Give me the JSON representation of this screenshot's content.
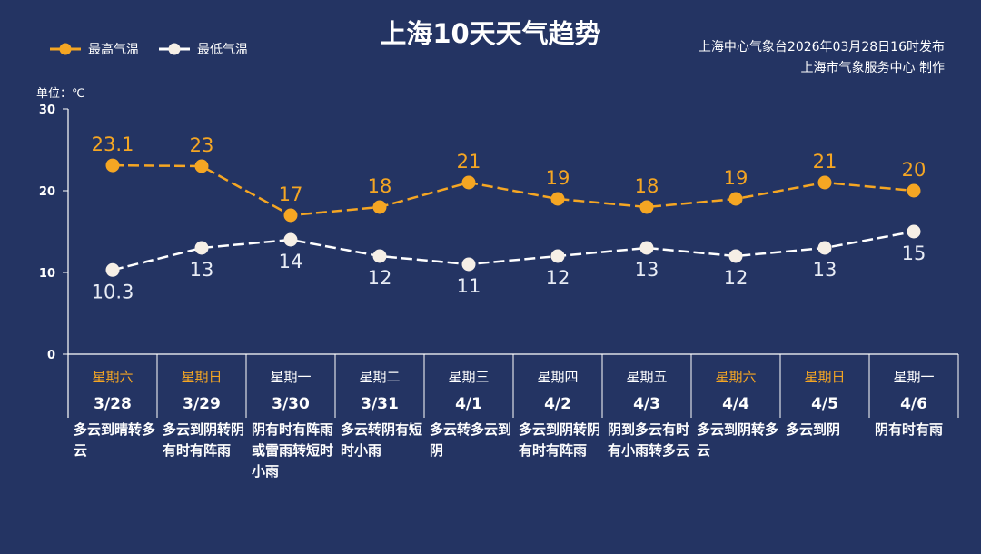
{
  "title": "上海10天天气趋势",
  "issuer": {
    "line1": "上海中心气象台2026年03月28日16时发布",
    "line2": "上海市气象服务中心 制作"
  },
  "unit_label": "单位：℃",
  "colors": {
    "background": "#243463",
    "high": "#f5a623",
    "low": "#ffffff",
    "weekend": "#f5a623"
  },
  "chart_data": {
    "type": "line",
    "title": "上海10天天气趋势",
    "ylim": [
      0,
      30
    ],
    "yticks": [
      "0",
      "10",
      "20",
      "30"
    ],
    "legend_position": "top-left",
    "grid": false,
    "categories": [
      "3/28",
      "3/29",
      "3/30",
      "3/31",
      "4/1",
      "4/2",
      "4/3",
      "4/4",
      "4/5",
      "4/6"
    ],
    "weekdays": [
      "星期六",
      "星期日",
      "星期一",
      "星期二",
      "星期三",
      "星期四",
      "星期五",
      "星期六",
      "星期日",
      "星期一"
    ],
    "weekend": [
      true,
      true,
      false,
      false,
      false,
      false,
      false,
      true,
      true,
      false
    ],
    "series": [
      {
        "name": "最高气温",
        "color": "#f5a623",
        "values": [
          23.1,
          23,
          17,
          18,
          21,
          19,
          18,
          19,
          21,
          20
        ],
        "labels": [
          "23.1",
          "23",
          "17",
          "18",
          "21",
          "19",
          "18",
          "19",
          "21",
          "20"
        ]
      },
      {
        "name": "最低气温",
        "color": "#ffffff",
        "values": [
          10.3,
          13,
          14,
          12,
          11,
          12,
          13,
          12,
          13,
          15
        ],
        "labels": [
          "10.3",
          "13",
          "14",
          "12",
          "11",
          "12",
          "13",
          "12",
          "13",
          "15"
        ]
      }
    ],
    "descriptions": [
      "多云到晴转多云",
      "多云到阴转阴有时有阵雨",
      "阴有时有阵雨或雷雨转短时小雨",
      "多云转阴有短时小雨",
      "多云转多云到阴",
      "多云到阴转阴有时有阵雨",
      "阴到多云有时有小雨转多云",
      "多云到阴转多云",
      "多云到阴",
      "阴有时有雨"
    ]
  }
}
